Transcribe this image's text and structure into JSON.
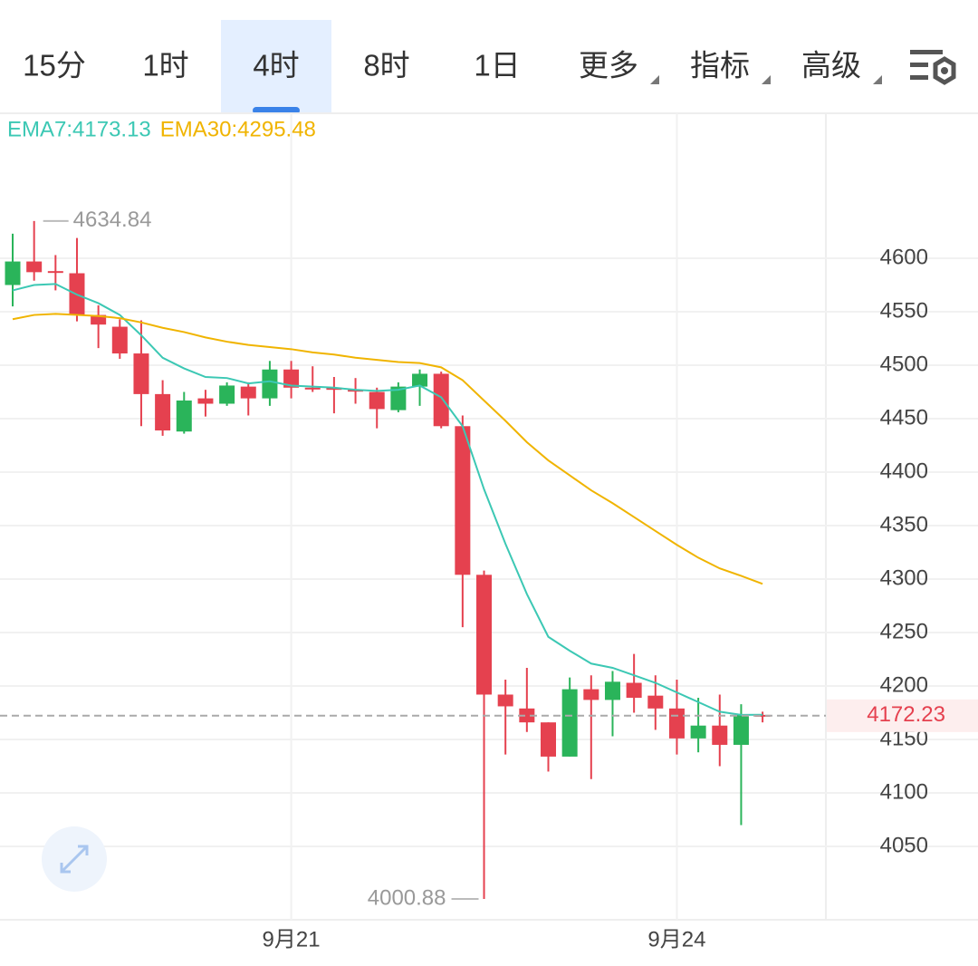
{
  "tabs": {
    "items": [
      "15分",
      "1时",
      "4时",
      "8时",
      "1日",
      "更多",
      "指标",
      "高级"
    ],
    "active": 2
  },
  "chart_data": {
    "type": "candlestick",
    "categories": [
      null,
      null,
      null,
      null,
      null,
      null,
      null,
      null,
      null,
      null,
      null,
      null,
      null,
      "9月21",
      null,
      null,
      null,
      null,
      null,
      null,
      null,
      null,
      null,
      null,
      null,
      null,
      null,
      null,
      null,
      null,
      null,
      "9月24",
      null,
      null,
      null,
      null
    ],
    "open": [
      4575,
      4597,
      4588,
      4586,
      4547,
      4536,
      4511,
      4473,
      4438,
      4469,
      4464,
      4480,
      4469,
      4496,
      4479,
      4479,
      4477,
      4475,
      4458,
      4480,
      4492,
      4443,
      4304,
      4192,
      4179,
      4166,
      4134,
      4197,
      4187,
      4203,
      4191,
      4179,
      4151,
      4163,
      4145,
      4173
    ],
    "high": [
      4623,
      4634.84,
      4603,
      4619,
      4556,
      4543,
      4542,
      4486,
      4475,
      4477,
      4484,
      4484,
      4504,
      4504,
      4499,
      4489,
      4488,
      4479,
      4484,
      4496,
      4494,
      4453,
      4308,
      4206,
      4217,
      4166,
      4208,
      4210,
      4214,
      4230,
      4210,
      4206,
      4189,
      4192,
      4183,
      4176
    ],
    "low": [
      4555,
      4579,
      4570,
      4541,
      4516,
      4506,
      4443,
      4434,
      4436,
      4452,
      4462,
      4453,
      4462,
      4469,
      4475,
      4455,
      4464,
      4441,
      4456,
      4462,
      4441,
      4255,
      4000.88,
      4136,
      4157,
      4120,
      4134,
      4113,
      4153,
      4175,
      4159,
      4136,
      4138,
      4125,
      4070,
      4166
    ],
    "close": [
      4597,
      4587,
      4587,
      4547,
      4538,
      4511,
      4473,
      4439,
      4467,
      4464,
      4481,
      4469,
      4496,
      4479,
      4478,
      4477,
      4476,
      4459,
      4480,
      4492,
      4443,
      4304,
      4192,
      4181,
      4166,
      4134,
      4197,
      4187,
      4204,
      4189,
      4179,
      4151,
      4163,
      4145,
      4173,
      4172.23
    ],
    "up_color": "#2ab45a",
    "down_color": "#e5414f",
    "series": [
      {
        "name": "EMA7",
        "legend_label": "EMA7:4173.13",
        "color": "#3cc8b4",
        "values": [
          4570,
          4575,
          4576,
          4566,
          4558,
          4547,
          4528,
          4507,
          4497,
          4489,
          4488,
          4483,
          4485,
          4481,
          4480,
          4479,
          4477,
          4476,
          4477,
          4481,
          4470,
          4443,
          4384,
          4333,
          4286,
          4246,
          4233,
          4221,
          4217,
          4210,
          4203,
          4194,
          4185,
          4176,
          4173,
          4173.13
        ]
      },
      {
        "name": "EMA30",
        "legend_label": "EMA30:4295.48",
        "color": "#f0b400",
        "values": [
          4543,
          4547,
          4548,
          4547,
          4546,
          4544,
          4540,
          4535,
          4531,
          4526,
          4522,
          4519,
          4517,
          4515,
          4512,
          4510,
          4507,
          4505,
          4503,
          4502,
          4498,
          4486,
          4467,
          4448,
          4428,
          4411,
          4397,
          4383,
          4371,
          4358,
          4345,
          4332,
          4320,
          4310,
          4303,
          4295.48
        ]
      }
    ],
    "ylim": [
      3981.4,
      4735.6
    ],
    "yticks": [
      4050,
      4100,
      4150,
      4200,
      4250,
      4300,
      4350,
      4400,
      4450,
      4500,
      4550,
      4600
    ],
    "grid": true
  }
}
